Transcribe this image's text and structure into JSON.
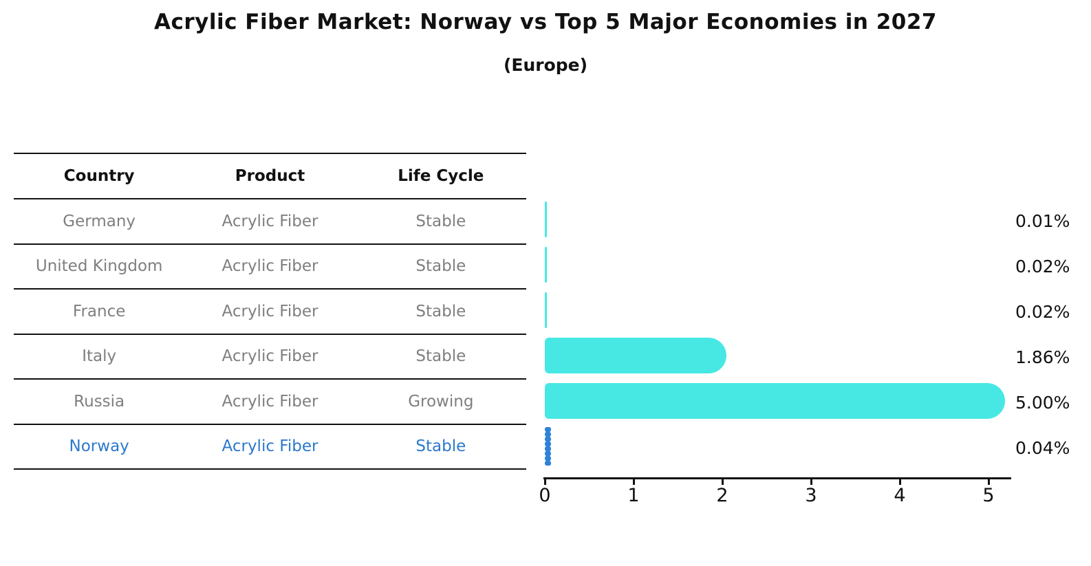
{
  "title": "Acrylic Fiber Market: Norway vs Top 5 Major Economies in 2027",
  "subtitle": "(Europe)",
  "table": {
    "headers": [
      "Country",
      "Product",
      "Life Cycle"
    ],
    "rows": [
      {
        "country": "Germany",
        "product": "Acrylic Fiber",
        "life_cycle": "Stable",
        "highlight": false
      },
      {
        "country": "United Kingdom",
        "product": "Acrylic Fiber",
        "life_cycle": "Stable",
        "highlight": false
      },
      {
        "country": "France",
        "product": "Acrylic Fiber",
        "life_cycle": "Stable",
        "highlight": false
      },
      {
        "country": "Italy",
        "product": "Acrylic Fiber",
        "life_cycle": "Stable",
        "highlight": false
      },
      {
        "country": "Russia",
        "product": "Acrylic Fiber",
        "life_cycle": "Growing",
        "highlight": false
      },
      {
        "country": "Norway",
        "product": "Acrylic Fiber",
        "life_cycle": "Stable",
        "highlight": true
      }
    ]
  },
  "chart_data": {
    "type": "bar",
    "orientation": "horizontal",
    "title": "Acrylic Fiber Market: Norway vs Top 5 Major Economies in 2027",
    "subtitle": "(Europe)",
    "categories": [
      "Germany",
      "United Kingdom",
      "France",
      "Italy",
      "Russia",
      "Norway"
    ],
    "values": [
      0.01,
      0.02,
      0.02,
      1.86,
      5.0,
      0.04
    ],
    "value_labels": [
      "0.01%",
      "0.02%",
      "0.02%",
      "1.86%",
      "5.00%",
      "0.04%"
    ],
    "xticks": [
      "0",
      "1",
      "2",
      "3",
      "4",
      "5"
    ],
    "xlim": [
      0,
      5.3
    ],
    "grid": false,
    "legend": "none",
    "highlight_index": 5
  },
  "colors": {
    "background": "#ffffff",
    "bar": "#47e8e4",
    "highlight_bar": "#2e82d9",
    "highlight_text": "#2b79cc",
    "muted_text": "#7f7f7f",
    "axis": "#111111"
  }
}
